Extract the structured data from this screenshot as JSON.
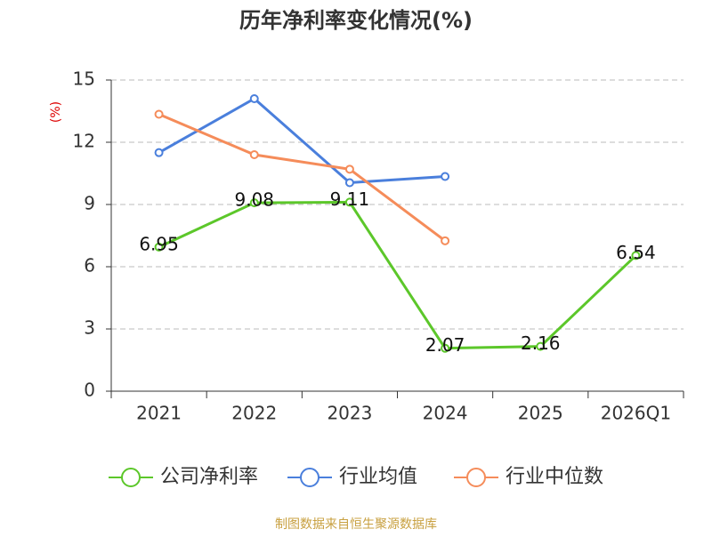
{
  "chart_data": {
    "type": "line",
    "title": "历年净利率变化情况(%)",
    "y_label": "(%)",
    "categories": [
      "2021",
      "2022",
      "2023",
      "2024",
      "2025",
      "2026Q1"
    ],
    "series": [
      {
        "name": "公司净利率",
        "color": "#5cc72a",
        "values": [
          6.95,
          9.08,
          9.11,
          2.07,
          2.16,
          6.54
        ],
        "data_labels": true
      },
      {
        "name": "行业均值",
        "color": "#4a7fdc",
        "values": [
          11.5,
          14.1,
          10.05,
          10.35,
          null,
          null
        ]
      },
      {
        "name": "行业中位数",
        "color": "#f58c5a",
        "values": [
          13.35,
          11.4,
          10.7,
          7.25,
          null,
          null
        ]
      }
    ],
    "ylim": [
      0,
      15
    ],
    "yticks": [
      0,
      3,
      6,
      9,
      12,
      15
    ],
    "grid": true,
    "footer": "制图数据来自恒生聚源数据库"
  }
}
